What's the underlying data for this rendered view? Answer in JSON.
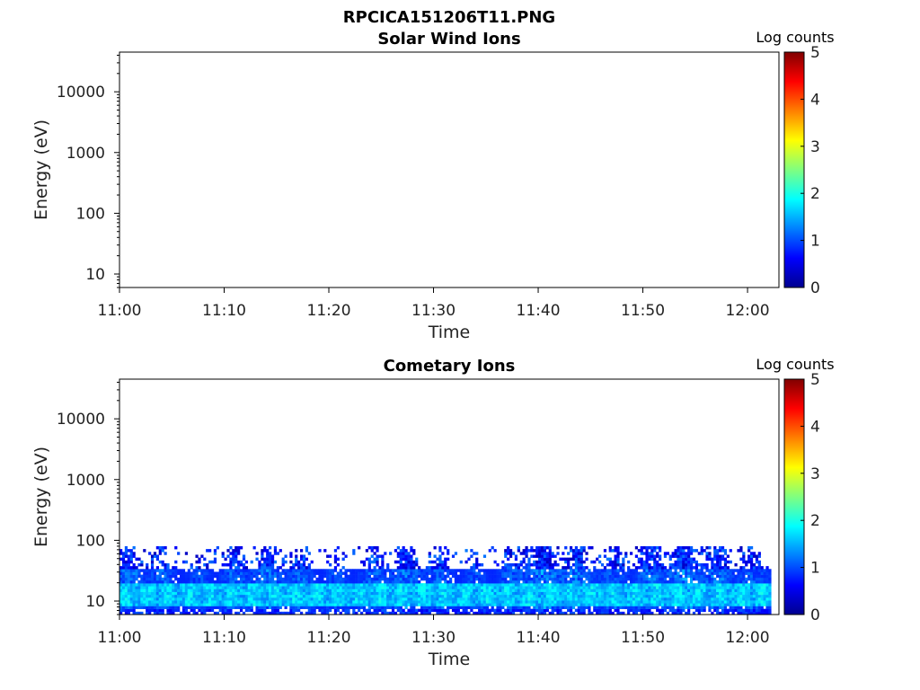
{
  "figure_title": "RPCICA151206T11.PNG",
  "chart_data": [
    {
      "type": "heatmap",
      "title": "Solar Wind Ions",
      "xlabel": "Time",
      "ylabel": "Energy (eV)",
      "x_ticks": [
        "11:00",
        "11:10",
        "11:20",
        "11:30",
        "11:40",
        "11:50",
        "12:00"
      ],
      "x_range_minutes": [
        0,
        63
      ],
      "y_scale": "log",
      "y_ticks": [
        10,
        100,
        1000,
        10000
      ],
      "y_tick_labels": [
        "10",
        "100",
        "1000",
        "10000"
      ],
      "y_range": [
        6,
        45000
      ],
      "colorbar": {
        "label": "Log counts",
        "range": [
          0,
          5
        ],
        "ticks": [
          "0",
          "1",
          "2",
          "3",
          "4",
          "5"
        ],
        "colormap": "jet"
      },
      "data_summary": "no counts"
    },
    {
      "type": "heatmap",
      "title": "Cometary Ions",
      "xlabel": "Time",
      "ylabel": "Energy (eV)",
      "x_ticks": [
        "11:00",
        "11:10",
        "11:20",
        "11:30",
        "11:40",
        "11:50",
        "12:00"
      ],
      "x_range_minutes": [
        0,
        63
      ],
      "y_scale": "log",
      "y_ticks": [
        10,
        100,
        1000,
        10000
      ],
      "y_tick_labels": [
        "10",
        "100",
        "1000",
        "10000"
      ],
      "y_range": [
        6,
        45000
      ],
      "colorbar": {
        "label": "Log counts",
        "range": [
          0,
          5
        ],
        "ticks": [
          "0",
          "1",
          "2",
          "3",
          "4",
          "5"
        ],
        "colormap": "jet"
      },
      "data_summary": {
        "energy_band_eV": [
          6,
          80
        ],
        "peak_energy_eV": [
          9,
          18
        ],
        "peak_log_counts": 2.0,
        "background_log_counts": [
          0.3,
          1.0
        ]
      }
    }
  ]
}
